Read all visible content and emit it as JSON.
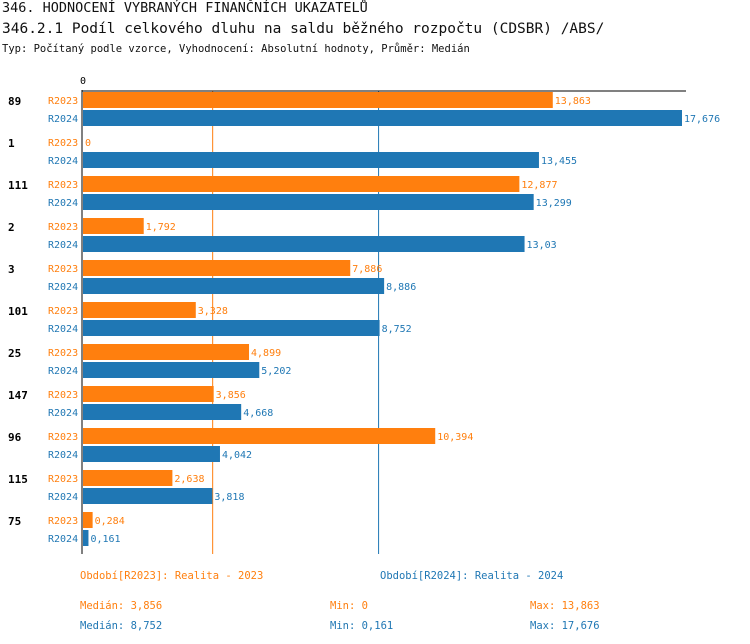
{
  "header": {
    "title": "346. HODNOCENÍ VYBRANÝCH FINANČNÍCH UKAZATELŮ",
    "subtitle": "346.2.1 Podíl celkového dluhu na saldu běžného rozpočtu (CDSBR) /ABS/",
    "info": "Typ: Počítaný podle vzorce, Vyhodnocení: Absolutní hodnoty, Průměr: Medián"
  },
  "colors": {
    "r2023": "#ff7f0e",
    "r2024": "#1f77b4",
    "axis": "#000000"
  },
  "chart_data": {
    "type": "bar",
    "orientation": "horizontal",
    "axis_zero_label": "0",
    "xlim": [
      0,
      17.676
    ],
    "categories": [
      "89",
      "1",
      "111",
      "2",
      "3",
      "101",
      "25",
      "147",
      "96",
      "115",
      "75"
    ],
    "series": [
      {
        "name": "R2023",
        "values": [
          13.863,
          0,
          12.877,
          1.792,
          7.886,
          3.328,
          4.899,
          3.856,
          10.394,
          2.638,
          0.284
        ],
        "labels": [
          "13,863",
          "0",
          "12,877",
          "1,792",
          "7,886",
          "3,328",
          "4,899",
          "3,856",
          "10,394",
          "2,638",
          "0,284"
        ]
      },
      {
        "name": "R2024",
        "values": [
          17.676,
          13.455,
          13.299,
          13.03,
          8.886,
          8.752,
          5.202,
          4.668,
          4.042,
          3.818,
          0.161
        ],
        "labels": [
          "17,676",
          "13,455",
          "13,299",
          "13,03",
          "8,886",
          "8,752",
          "5,202",
          "4,668",
          "4,042",
          "3,818",
          "0,161"
        ]
      }
    ],
    "median_lines": {
      "R2023": 3.856,
      "R2024": 8.752
    }
  },
  "footer": {
    "legend_2023": "Období[R2023]: Realita - 2023",
    "legend_2024": "Období[R2024]: Realita - 2024",
    "median_2023": "Medián: 3,856",
    "min_2023": "Min: 0",
    "max_2023": "Max: 13,863",
    "median_2024": "Medián: 8,752",
    "min_2024": "Min: 0,161",
    "max_2024": "Max: 17,676"
  }
}
